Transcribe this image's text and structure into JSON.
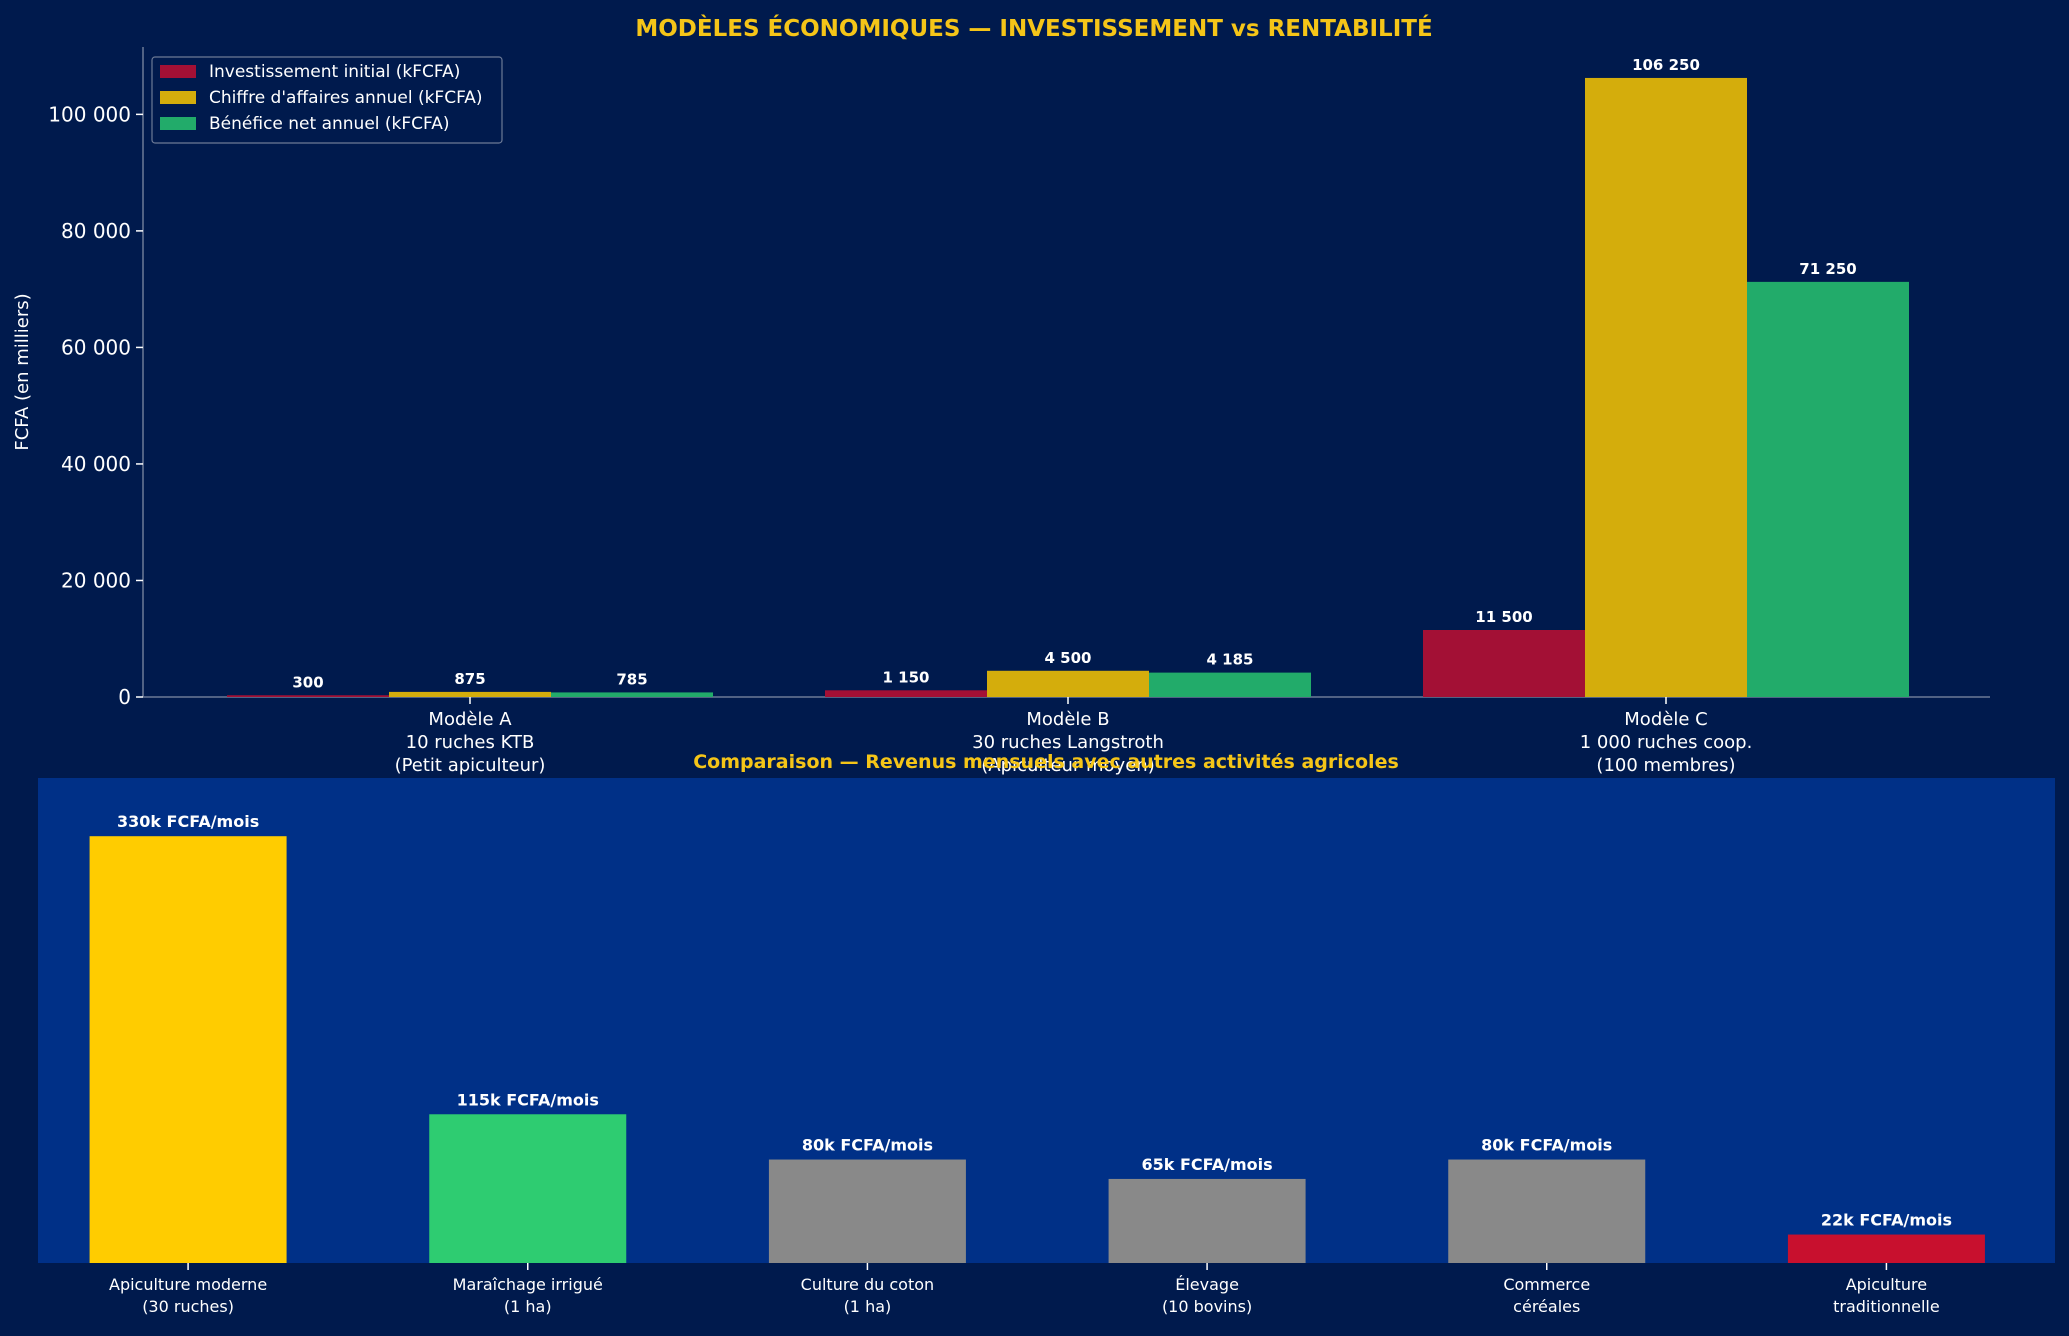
{
  "colors": {
    "figure_bg": "#001a4d",
    "panel2_bg": "#003087",
    "title": "#f5c518",
    "text": "#ffffff",
    "axis": "#6c7a96",
    "invest": "#a31035",
    "ca": "#d4ad0c",
    "benefit": "#22ab6a",
    "comp_highlight": "#ffcc00",
    "comp_green": "#2ecc71",
    "comp_grey": "#898989",
    "comp_red": "#c8102e"
  },
  "chart_data": [
    {
      "type": "bar",
      "title": "MODÈLES ÉCONOMIQUES — INVESTISSEMENT vs RENTABILITÉ",
      "ylabel": "FCFA (en milliers)",
      "xlabel": "",
      "ylim": [
        0,
        111562
      ],
      "yticks": [
        0,
        20000,
        40000,
        60000,
        80000,
        100000
      ],
      "ytick_labels": [
        "0",
        "20 000",
        "40 000",
        "60 000",
        "80 000",
        "100 000"
      ],
      "grid": false,
      "legend_position": "top-left",
      "categories": [
        [
          "Modèle A",
          "10 ruches KTB",
          "(Petit apiculteur)"
        ],
        [
          "Modèle B",
          "30 ruches Langstroth",
          "(Apiculteur moyen)"
        ],
        [
          "Modèle C",
          "1 000 ruches coop.",
          "(100 membres)"
        ]
      ],
      "series": [
        {
          "name": "Investissement initial (kFCFA)",
          "color_key": "invest",
          "values": [
            300,
            1150,
            11500
          ],
          "labels": [
            "300",
            "1 150",
            "11 500"
          ]
        },
        {
          "name": "Chiffre d'affaires annuel (kFCFA)",
          "color_key": "ca",
          "values": [
            875,
            4500,
            106250
          ],
          "labels": [
            "875",
            "4 500",
            "106 250"
          ]
        },
        {
          "name": "Bénéfice net annuel (kFCFA)",
          "color_key": "benefit",
          "values": [
            785,
            4185,
            71250
          ],
          "labels": [
            "785",
            "4 185",
            "71 250"
          ]
        }
      ]
    },
    {
      "type": "bar",
      "title": "Comparaison — Revenus mensuels avec autres activités agricoles",
      "xlabel": "",
      "ylabel": "",
      "ylim": [
        0,
        375
      ],
      "grid": false,
      "categories": [
        [
          "Apiculture moderne",
          "(30 ruches)"
        ],
        [
          "Maraîchage irrigué",
          "(1 ha)"
        ],
        [
          "Culture du coton",
          "(1 ha)"
        ],
        [
          "Élevage",
          "(10 bovins)"
        ],
        [
          "Commerce",
          "céréales"
        ],
        [
          "Apiculture",
          "traditionnelle"
        ]
      ],
      "values": [
        330,
        115,
        80,
        65,
        80,
        22
      ],
      "labels": [
        "330k FCFA/mois",
        "115k FCFA/mois",
        "80k FCFA/mois",
        "65k FCFA/mois",
        "80k FCFA/mois",
        "22k FCFA/mois"
      ],
      "color_keys": [
        "comp_highlight",
        "comp_green",
        "comp_grey",
        "comp_grey",
        "comp_grey",
        "comp_red"
      ]
    }
  ]
}
